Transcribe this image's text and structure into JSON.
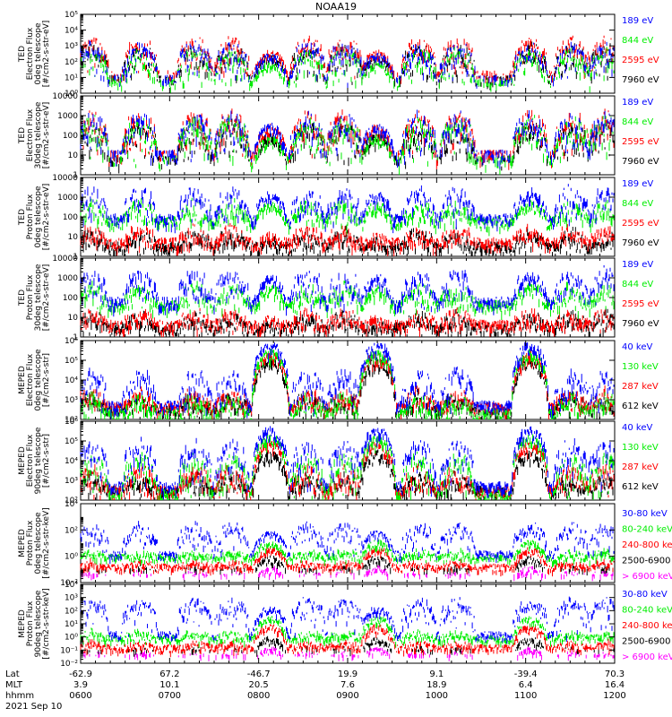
{
  "title": "NOAA19",
  "chart_data": [
    {
      "type": "line",
      "panel": "TED electron flux 0deg",
      "ylabel": [
        "TED",
        "Electron Flux",
        "0deg telescope",
        "[#/cm2-s-str-eV]"
      ],
      "yscale": "log",
      "ylim": [
        1,
        100000
      ],
      "yticks": [
        "10⁰",
        "10¹",
        "10²",
        "10³",
        "10⁴",
        "10⁵"
      ],
      "series": [
        {
          "name": "7960 eV",
          "color": "#000000",
          "peak": 150,
          "base": 8,
          "hi": 1200
        },
        {
          "name": "2595 eV",
          "color": "#ff0000",
          "peak": 300,
          "base": 15,
          "hi": 3000
        },
        {
          "name": "844 eV",
          "color": "#00ee00",
          "peak": 60,
          "base": 5,
          "hi": 600
        },
        {
          "name": "189 eV",
          "color": "#0000ff",
          "peak": 200,
          "base": 8,
          "hi": 1500
        }
      ]
    },
    {
      "type": "line",
      "panel": "TED electron flux 30deg",
      "ylabel": [
        "TED",
        "Electron Flux",
        "30deg telescope",
        "[#/cm2-s-str-eV]"
      ],
      "yscale": "log",
      "ylim": [
        1,
        10000
      ],
      "yticks": [
        "1",
        "10",
        "100",
        "1000",
        "10000"
      ],
      "series": [
        {
          "name": "7960 eV",
          "color": "#000000",
          "peak": 80,
          "base": 5,
          "hi": 500
        },
        {
          "name": "2595 eV",
          "color": "#ff0000",
          "peak": 200,
          "base": 10,
          "hi": 1500
        },
        {
          "name": "844 eV",
          "color": "#00ee00",
          "peak": 60,
          "base": 5,
          "hi": 800
        },
        {
          "name": "189 eV",
          "color": "#0000ff",
          "peak": 250,
          "base": 10,
          "hi": 1200
        }
      ]
    },
    {
      "type": "line",
      "panel": "TED proton flux 0deg",
      "ylabel": [
        "TED",
        "Proton Flux",
        "0deg telescope",
        "[#/cm2-s-str-eV]"
      ],
      "yscale": "log",
      "ylim": [
        1,
        10000
      ],
      "yticks": [
        "1",
        "10",
        "100",
        "1000",
        "10000"
      ],
      "series": [
        {
          "name": "7960 eV",
          "color": "#000000",
          "peak": 6,
          "base": 3,
          "hi": 20
        },
        {
          "name": "2595 eV",
          "color": "#ff0000",
          "peak": 10,
          "base": 5,
          "hi": 30
        },
        {
          "name": "844 eV",
          "color": "#00ee00",
          "peak": 350,
          "base": 60,
          "hi": 600
        },
        {
          "name": "189 eV",
          "color": "#0000ff",
          "peak": 1200,
          "base": 80,
          "hi": 3000
        }
      ]
    },
    {
      "type": "line",
      "panel": "TED proton flux 30deg",
      "ylabel": [
        "TED",
        "Proton Flux",
        "30deg telescope",
        "[#/cm2-s-str-eV]"
      ],
      "yscale": "log",
      "ylim": [
        1,
        10000
      ],
      "yticks": [
        "1",
        "10",
        "100",
        "1000",
        "10000"
      ],
      "series": [
        {
          "name": "7960 eV",
          "color": "#000000",
          "peak": 5,
          "base": 3,
          "hi": 15
        },
        {
          "name": "2595 eV",
          "color": "#ff0000",
          "peak": 8,
          "base": 4,
          "hi": 20
        },
        {
          "name": "844 eV",
          "color": "#00ee00",
          "peak": 250,
          "base": 40,
          "hi": 500
        },
        {
          "name": "189 eV",
          "color": "#0000ff",
          "peak": 800,
          "base": 60,
          "hi": 2500
        }
      ]
    },
    {
      "type": "line",
      "panel": "MEPED electron flux 0deg",
      "ylabel": [
        "MEPED",
        "Electron Flux",
        "0deg telescope",
        "[#/cm2-s-str]"
      ],
      "yscale": "log",
      "ylim": [
        100,
        1000000
      ],
      "yticks": [
        "10²",
        "10³",
        "10⁴",
        "10⁵",
        "10⁶"
      ],
      "series": [
        {
          "name": "612 keV",
          "color": "#000000",
          "peak": 80000,
          "base": 300,
          "hi": 2000
        },
        {
          "name": "287 keV",
          "color": "#ff0000",
          "peak": 150000,
          "base": 400,
          "hi": 3000
        },
        {
          "name": "130 keV",
          "color": "#00ee00",
          "peak": 200000,
          "base": 200,
          "hi": 1500
        },
        {
          "name": "40 keV",
          "color": "#0000ff",
          "peak": 500000,
          "base": 500,
          "hi": 30000
        }
      ]
    },
    {
      "type": "line",
      "panel": "MEPED electron flux 90deg",
      "ylabel": [
        "MEPED",
        "Electron Flux",
        "90deg telescope",
        "[#/cm2-s-str]"
      ],
      "yscale": "log",
      "ylim": [
        100,
        1000000
      ],
      "yticks": [
        "10²",
        "10³",
        "10⁴",
        "10⁵",
        "10⁶"
      ],
      "series": [
        {
          "name": "612 keV",
          "color": "#000000",
          "peak": 20000,
          "base": 300,
          "hi": 2000
        },
        {
          "name": "287 keV",
          "color": "#ff0000",
          "peak": 60000,
          "base": 300,
          "hi": 5000
        },
        {
          "name": "130 keV",
          "color": "#00ee00",
          "peak": 120000,
          "base": 200,
          "hi": 20000
        },
        {
          "name": "40 keV",
          "color": "#0000ff",
          "peak": 300000,
          "base": 500,
          "hi": 100000
        }
      ]
    },
    {
      "type": "line",
      "panel": "MEPED proton flux 0deg",
      "ylabel": [
        "MEPED",
        "Proton Flux",
        "0deg telescope",
        "[#/cm2-s-str-keV]"
      ],
      "yscale": "log",
      "ylim": [
        0.01,
        10000
      ],
      "yticks": [
        "10⁻²",
        "10⁰",
        "10²",
        "10⁴"
      ],
      "series": [
        {
          "name": "> 6900 keV",
          "color": "#ff00ff",
          "peak": 0.1,
          "base": 0.02,
          "hi": 0.05
        },
        {
          "name": "2500-6900",
          "color": "#000000",
          "peak": 0.6,
          "base": 0.05,
          "hi": 0.1
        },
        {
          "name": "240-800 keV",
          "color": "#ff0000",
          "peak": 3,
          "base": 0.15,
          "hi": 0.3
        },
        {
          "name": "80-240 keV",
          "color": "#00ee00",
          "peak": 10,
          "base": 0.8,
          "hi": 2
        },
        {
          "name": "30-80 keV",
          "color": "#0000ff",
          "peak": 50,
          "base": 1.5,
          "hi": 300
        }
      ]
    },
    {
      "type": "line",
      "panel": "MEPED proton flux 90deg",
      "ylabel": [
        "MEPED",
        "Proton Flux",
        "90deg telescope",
        "[#/cm2-s-str-keV]"
      ],
      "yscale": "log",
      "ylim": [
        0.01,
        10000
      ],
      "yticks": [
        "10⁻²",
        "10⁻¹",
        "10⁰",
        "10¹",
        "10²",
        "10³",
        "10⁴"
      ],
      "series": [
        {
          "name": "> 6900 keV",
          "color": "#ff00ff",
          "peak": 0.1,
          "base": 0.02,
          "hi": 0.05
        },
        {
          "name": "2500-6900",
          "color": "#000000",
          "peak": 0.6,
          "base": 0.05,
          "hi": 0.1
        },
        {
          "name": "240-800 keV",
          "color": "#ff0000",
          "peak": 5,
          "base": 0.15,
          "hi": 0.3
        },
        {
          "name": "80-240 keV",
          "color": "#00ee00",
          "peak": 20,
          "base": 0.8,
          "hi": 2
        },
        {
          "name": "30-80 keV",
          "color": "#0000ff",
          "peak": 120,
          "base": 1.5,
          "hi": 800
        }
      ]
    }
  ],
  "time_axis": {
    "row_labels": [
      "Lat",
      "MLT",
      "hhmm",
      "2021 Sep 10"
    ],
    "range_hhmm": [
      "0600",
      "1200"
    ],
    "ticks": [
      {
        "lat": "-62.9",
        "mlt": "3.9",
        "hhmm": "0600"
      },
      {
        "lat": "67.2",
        "mlt": "10.1",
        "hhmm": "0700"
      },
      {
        "lat": "-46.7",
        "mlt": "20.5",
        "hhmm": "0800"
      },
      {
        "lat": "19.9",
        "mlt": "7.6",
        "hhmm": "0900"
      },
      {
        "lat": "9.1",
        "mlt": "18.9",
        "hhmm": "1000"
      },
      {
        "lat": "-39.4",
        "mlt": "6.4",
        "hhmm": "1100"
      },
      {
        "lat": "70.3",
        "mlt": "16.4",
        "hhmm": "1200"
      }
    ]
  },
  "events": {
    "aurora_crossings_hhmm": [
      "0607",
      "0640",
      "0717",
      "0742",
      "0833",
      "0858",
      "0948",
      "1014",
      "1103",
      "1131",
      "1154"
    ],
    "radiation_belt_passes_hhmm": [
      "0808",
      "0920",
      "1103"
    ]
  }
}
